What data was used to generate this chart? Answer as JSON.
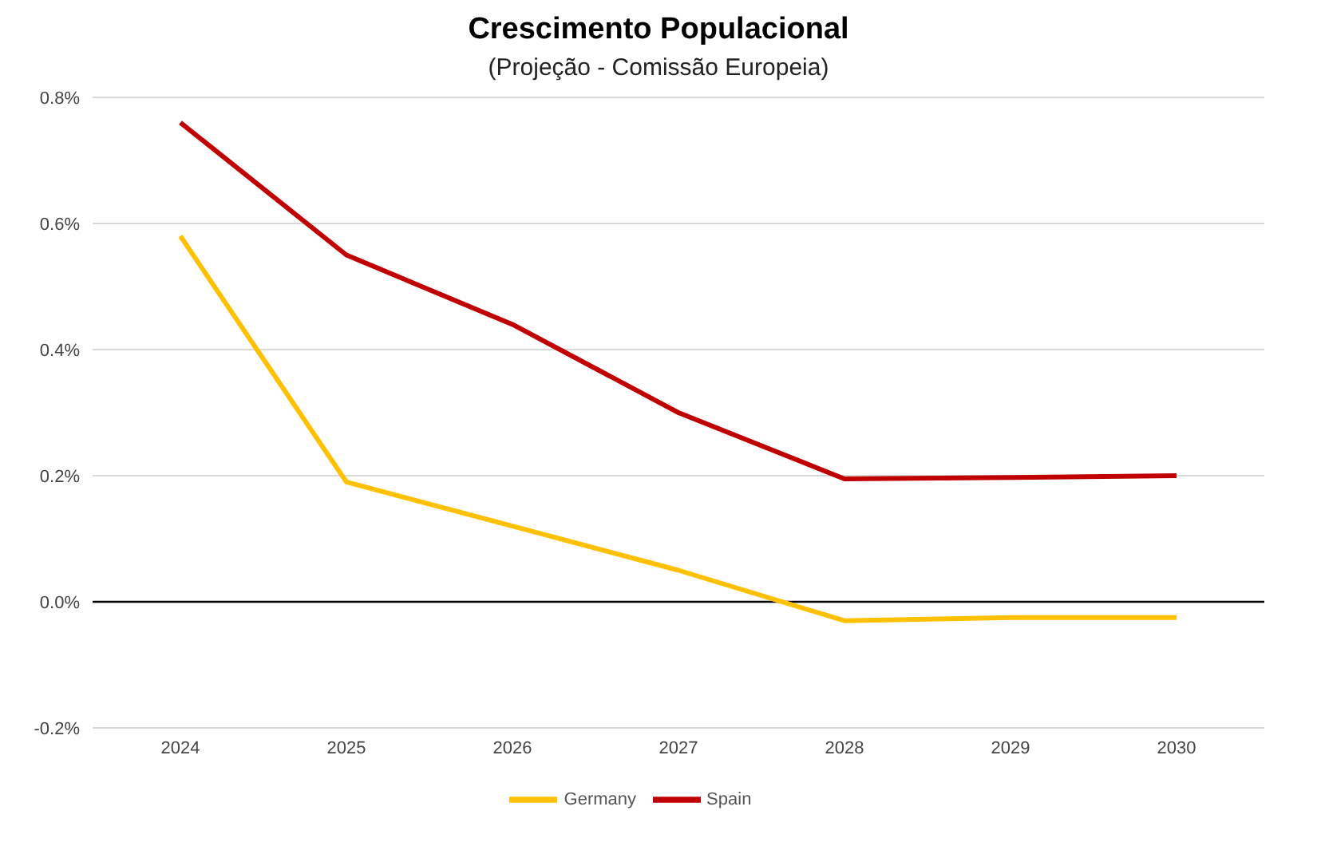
{
  "chart_data": {
    "type": "line",
    "title": "Crescimento Populacional",
    "subtitle": "(Projeção - Comissão Europeia)",
    "categories": [
      "2024",
      "2025",
      "2026",
      "2027",
      "2028",
      "2029",
      "2030"
    ],
    "series": [
      {
        "name": "Germany",
        "color": "#ffc000",
        "values": [
          0.58,
          0.19,
          0.12,
          0.05,
          -0.03,
          -0.025,
          -0.025
        ]
      },
      {
        "name": "Spain",
        "color": "#c00000",
        "values": [
          0.76,
          0.55,
          0.44,
          0.3,
          0.195,
          0.197,
          0.2
        ]
      }
    ],
    "ylim": [
      -0.2,
      0.8
    ],
    "yticks": [
      {
        "value": -0.2,
        "label": "-0.2%"
      },
      {
        "value": 0,
        "label": "0.0%"
      },
      {
        "value": 0.2,
        "label": "0.2%"
      },
      {
        "value": 0.4,
        "label": "0.4%"
      },
      {
        "value": 0.6,
        "label": "0.6%"
      },
      {
        "value": 0.8,
        "label": "0.8%"
      }
    ],
    "ref_lines": [
      {
        "axis": "y",
        "value": 0,
        "color": "#000000"
      }
    ],
    "grid": "y",
    "legend": "bottom",
    "marker": "none",
    "line_style": "solid"
  }
}
